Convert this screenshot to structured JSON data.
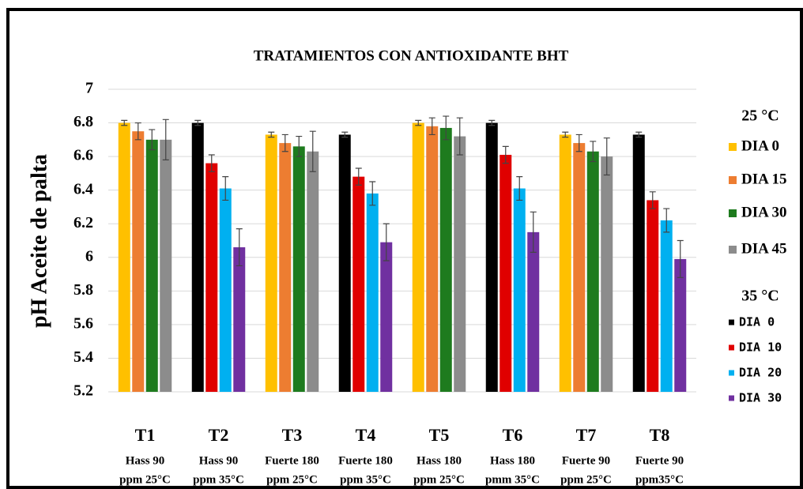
{
  "chart_data": {
    "type": "bar",
    "title": "TRATAMIENTOS CON ANTIOXIDANTE BHT",
    "y_label": "pH Aceite de palta",
    "categories": [
      "T1",
      "T2",
      "T3",
      "T4",
      "T5",
      "T6",
      "T7",
      "T8"
    ],
    "category_sublabels": [
      [
        "Hass 90",
        "ppm 25°C"
      ],
      [
        "Hass 90",
        "ppm 35°C"
      ],
      [
        "Fuerte 180",
        "ppm 25°C"
      ],
      [
        "Fuerte 180",
        "ppm 35°C"
      ],
      [
        "Hass 180",
        "ppm 25°C"
      ],
      [
        "Hass 180",
        "pmm 35°C"
      ],
      [
        "Fuerte 90",
        "ppm 25°C"
      ],
      [
        "Fuerte 90",
        "ppm35°C"
      ]
    ],
    "legend_titles": [
      "25 °C",
      "35 °C"
    ],
    "series": [
      {
        "name": "DIA 0",
        "color": "#ffc000",
        "values": [
          6.8,
          null,
          6.73,
          null,
          6.8,
          null,
          6.73,
          null
        ],
        "errors": [
          0.015,
          null,
          0.015,
          null,
          0.015,
          null,
          0.015,
          null
        ]
      },
      {
        "name": "DIA 15",
        "color": "#ed7d31",
        "values": [
          6.75,
          null,
          6.68,
          null,
          6.78,
          null,
          6.68,
          null
        ],
        "errors": [
          0.05,
          null,
          0.05,
          null,
          0.05,
          null,
          0.05,
          null
        ]
      },
      {
        "name": "DIA 30",
        "color": "#1e7b1e",
        "values": [
          6.7,
          null,
          6.66,
          null,
          6.77,
          null,
          6.63,
          null
        ],
        "errors": [
          0.06,
          null,
          0.06,
          null,
          0.07,
          null,
          0.06,
          null
        ]
      },
      {
        "name": "DIA 45",
        "color": "#8c8c8c",
        "values": [
          6.7,
          null,
          6.63,
          null,
          6.72,
          null,
          6.6,
          null
        ],
        "errors": [
          0.12,
          null,
          0.12,
          null,
          0.11,
          null,
          0.11,
          null
        ]
      },
      {
        "name": "DIA 0",
        "color": "#000000",
        "values": [
          null,
          6.8,
          null,
          6.73,
          null,
          6.8,
          null,
          6.73
        ],
        "errors": [
          null,
          0.015,
          null,
          0.015,
          null,
          0.015,
          null,
          0.015
        ]
      },
      {
        "name": "DIA 10",
        "color": "#e00000",
        "values": [
          null,
          6.56,
          null,
          6.48,
          null,
          6.61,
          null,
          6.34
        ],
        "errors": [
          null,
          0.05,
          null,
          0.05,
          null,
          0.05,
          null,
          0.05
        ]
      },
      {
        "name": "DIA 20",
        "color": "#00b0f0",
        "values": [
          null,
          6.41,
          null,
          6.38,
          null,
          6.41,
          null,
          6.22
        ],
        "errors": [
          null,
          0.07,
          null,
          0.07,
          null,
          0.07,
          null,
          0.07
        ]
      },
      {
        "name": "DIA 30",
        "color": "#7030a0",
        "values": [
          null,
          6.06,
          null,
          6.09,
          null,
          6.15,
          null,
          5.99
        ],
        "errors": [
          null,
          0.11,
          null,
          0.11,
          null,
          0.12,
          null,
          0.11
        ]
      }
    ],
    "ylim": [
      5.2,
      7
    ],
    "yticks": [
      5.2,
      5.4,
      5.6,
      5.8,
      6,
      6.2,
      6.4,
      6.6,
      6.8,
      7
    ],
    "grid": true
  }
}
